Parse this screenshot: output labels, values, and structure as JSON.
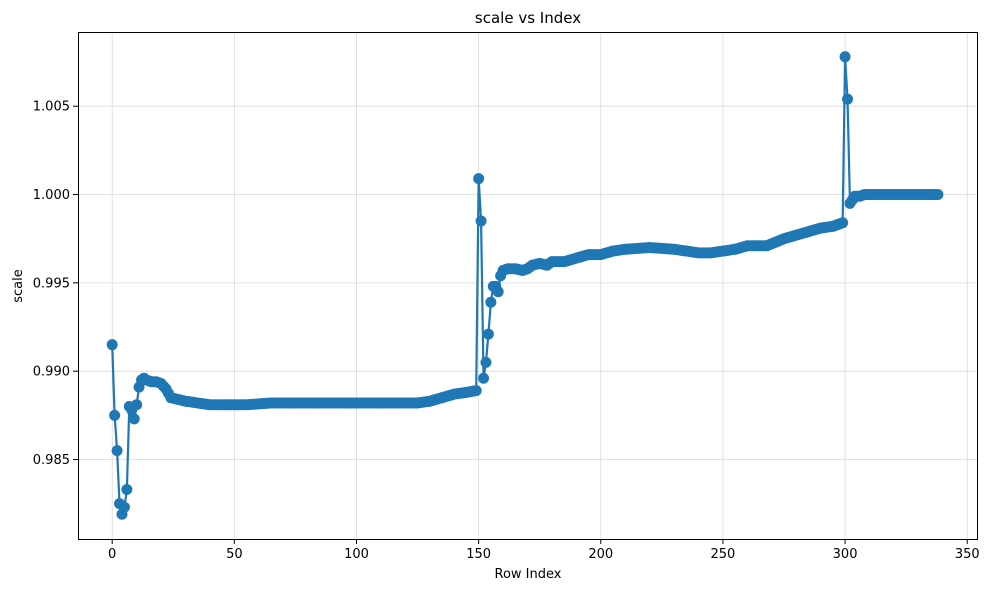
{
  "colors": {
    "series": "#1f77b4",
    "grid": "#d9d9d9",
    "frame": "#000000"
  },
  "chart_data": {
    "type": "line",
    "title": "scale vs Index",
    "xlabel": "Row Index",
    "ylabel": "scale",
    "xlim": [
      -14,
      354
    ],
    "ylim": [
      0.9805,
      1.0092
    ],
    "x_ticks": [
      0,
      50,
      100,
      150,
      200,
      250,
      300,
      350
    ],
    "x_tick_labels": [
      "0",
      "50",
      "100",
      "150",
      "200",
      "250",
      "300",
      "350"
    ],
    "y_ticks": [
      0.985,
      0.99,
      0.995,
      1.0,
      1.005
    ],
    "y_tick_labels": [
      "0.985",
      "0.990",
      "0.995",
      "1.000",
      "1.005"
    ],
    "grid": true,
    "marker": "circle",
    "series": [
      {
        "keypoints": [
          [
            0,
            0.9915
          ],
          [
            1,
            0.9875
          ],
          [
            2,
            0.9855
          ],
          [
            3,
            0.9825
          ],
          [
            4,
            0.9819
          ],
          [
            5,
            0.9823
          ],
          [
            6,
            0.9833
          ],
          [
            7,
            0.988
          ],
          [
            8,
            0.9878
          ],
          [
            9,
            0.9873
          ],
          [
            10,
            0.9881
          ],
          [
            11,
            0.9891
          ],
          [
            12,
            0.9895
          ],
          [
            13,
            0.9896
          ],
          [
            14,
            0.9895
          ],
          [
            16,
            0.9894
          ],
          [
            18,
            0.9894
          ],
          [
            20,
            0.9893
          ],
          [
            22,
            0.989
          ],
          [
            24,
            0.9885
          ],
          [
            27,
            0.9884
          ],
          [
            30,
            0.9883
          ],
          [
            35,
            0.9882
          ],
          [
            40,
            0.9881
          ],
          [
            45,
            0.9881
          ],
          [
            55,
            0.9881
          ],
          [
            65,
            0.9882
          ],
          [
            100,
            0.9882
          ],
          [
            125,
            0.9882
          ],
          [
            130,
            0.9883
          ],
          [
            135,
            0.9885
          ],
          [
            140,
            0.9887
          ],
          [
            145,
            0.9888
          ],
          [
            149,
            0.9889
          ],
          [
            150,
            1.0009
          ],
          [
            151,
            0.9985
          ],
          [
            152,
            0.9896
          ],
          [
            153,
            0.9905
          ],
          [
            154,
            0.9921
          ],
          [
            155,
            0.9939
          ],
          [
            156,
            0.9948
          ],
          [
            157,
            0.9948
          ],
          [
            158,
            0.9945
          ],
          [
            159,
            0.9954
          ],
          [
            160,
            0.9957
          ],
          [
            162,
            0.9958
          ],
          [
            165,
            0.9958
          ],
          [
            168,
            0.9957
          ],
          [
            170,
            0.9958
          ],
          [
            172,
            0.996
          ],
          [
            175,
            0.9961
          ],
          [
            178,
            0.996
          ],
          [
            180,
            0.9962
          ],
          [
            185,
            0.9962
          ],
          [
            190,
            0.9964
          ],
          [
            195,
            0.9966
          ],
          [
            200,
            0.9966
          ],
          [
            205,
            0.9968
          ],
          [
            210,
            0.9969
          ],
          [
            220,
            0.997
          ],
          [
            230,
            0.9969
          ],
          [
            235,
            0.9968
          ],
          [
            240,
            0.9967
          ],
          [
            245,
            0.9967
          ],
          [
            250,
            0.9968
          ],
          [
            255,
            0.9969
          ],
          [
            260,
            0.9971
          ],
          [
            268,
            0.9971
          ],
          [
            275,
            0.9975
          ],
          [
            280,
            0.9977
          ],
          [
            285,
            0.9979
          ],
          [
            290,
            0.9981
          ],
          [
            295,
            0.9982
          ],
          [
            299,
            0.9984
          ],
          [
            300,
            1.0078
          ],
          [
            301,
            1.0054
          ],
          [
            302,
            0.9995
          ],
          [
            303,
            0.9997
          ],
          [
            304,
            0.9999
          ],
          [
            306,
            0.9999
          ],
          [
            308,
            1.0
          ],
          [
            338,
            1.0
          ]
        ]
      }
    ]
  }
}
